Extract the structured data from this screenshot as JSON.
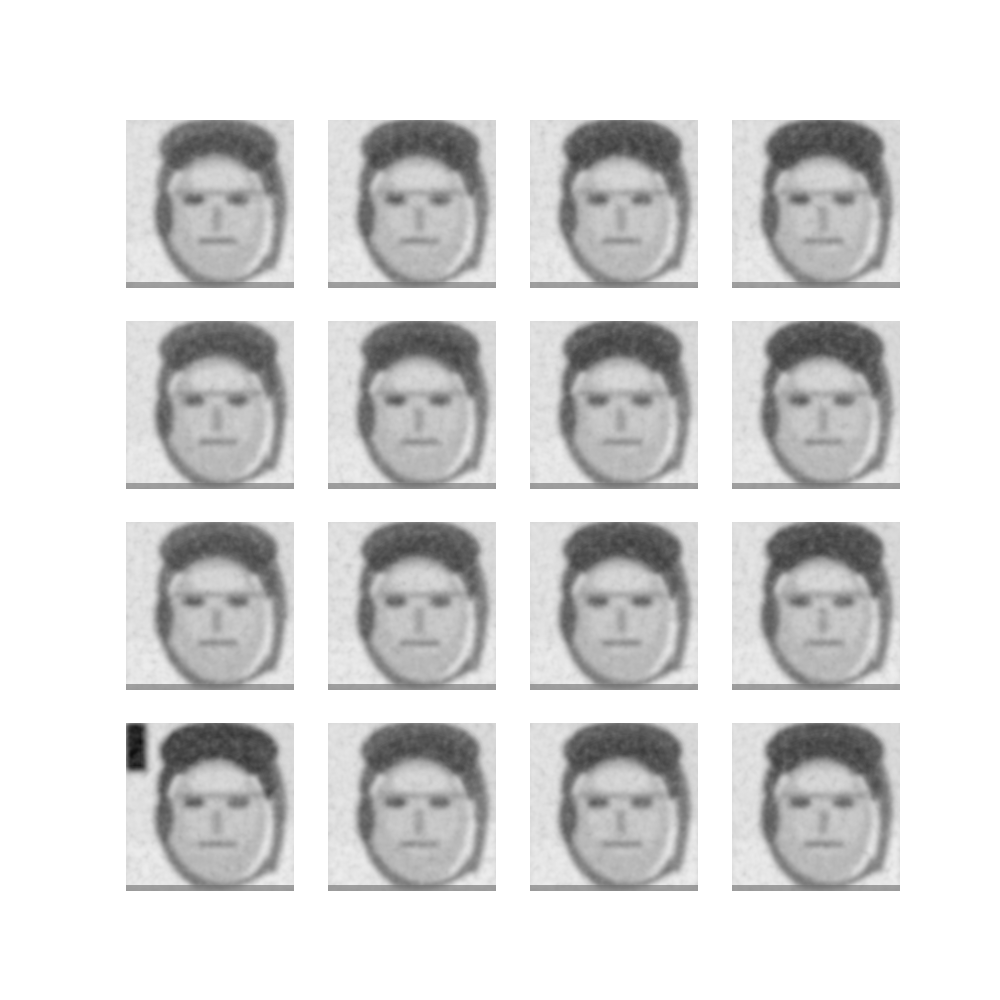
{
  "figure": {
    "rows": 4,
    "cols": 4,
    "tiles": [
      {
        "variant": 0
      },
      {
        "variant": 1
      },
      {
        "variant": 2
      },
      {
        "variant": 3
      },
      {
        "variant": 4
      },
      {
        "variant": 5
      },
      {
        "variant": 6
      },
      {
        "variant": 7
      },
      {
        "variant": 8
      },
      {
        "variant": 9
      },
      {
        "variant": 10
      },
      {
        "variant": 11
      },
      {
        "variant": 12
      },
      {
        "variant": 13
      },
      {
        "variant": 14
      },
      {
        "variant": 15
      }
    ],
    "colors": {
      "background": "#ffffff"
    }
  }
}
